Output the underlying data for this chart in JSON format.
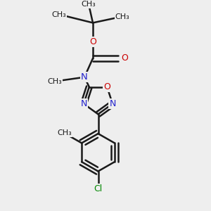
{
  "bg_color": "#eeeeee",
  "bond_color": "#1a1a1a",
  "bond_width": 1.8,
  "title": "",
  "layout": {
    "xlim": [
      0,
      1
    ],
    "ylim": [
      0,
      1
    ]
  }
}
